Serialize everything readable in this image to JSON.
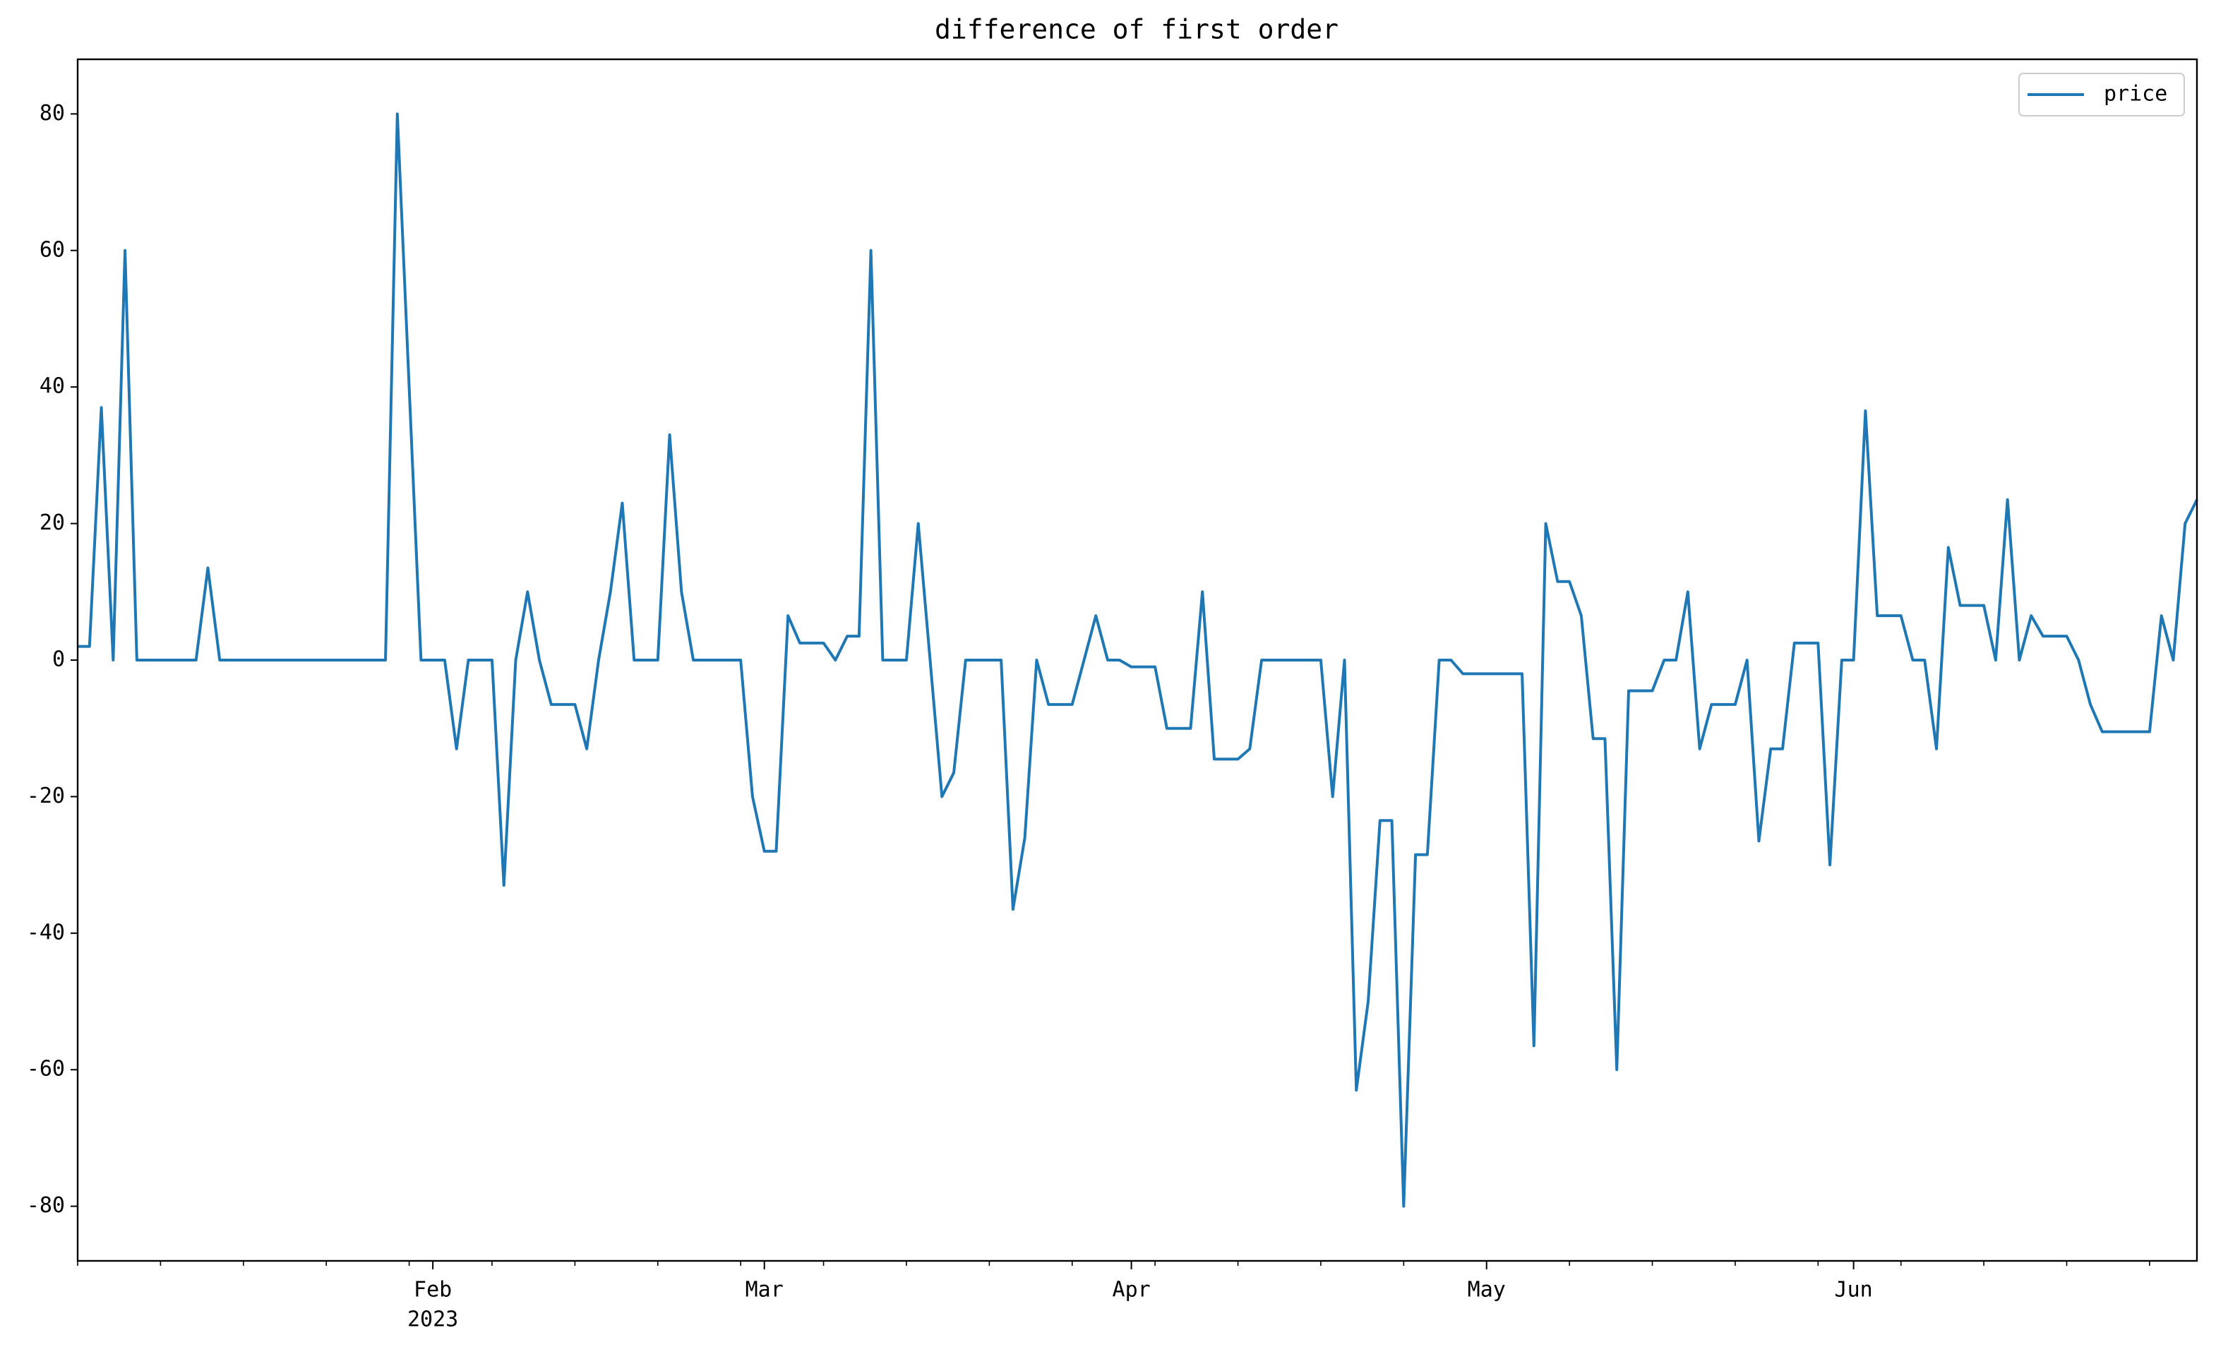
{
  "chart_data": {
    "type": "line",
    "title": "difference of first order",
    "categories": [
      null,
      null,
      null,
      null,
      null,
      null,
      null,
      null,
      null,
      null,
      null,
      null,
      null,
      null,
      null,
      null,
      null,
      null,
      null,
      null,
      null,
      null,
      null,
      null,
      null,
      null,
      null,
      null,
      null,
      null,
      "Feb",
      null,
      null,
      null,
      null,
      null,
      null,
      null,
      null,
      null,
      null,
      null,
      null,
      null,
      null,
      null,
      null,
      null,
      null,
      null,
      null,
      null,
      null,
      null,
      null,
      null,
      null,
      null,
      "Mar",
      null,
      null,
      null,
      null,
      null,
      null,
      null,
      null,
      null,
      null,
      null,
      null,
      null,
      null,
      null,
      null,
      null,
      null,
      null,
      null,
      null,
      null,
      null,
      null,
      null,
      null,
      null,
      null,
      null,
      null,
      "Apr",
      null,
      null,
      null,
      null,
      null,
      null,
      null,
      null,
      null,
      null,
      null,
      null,
      null,
      null,
      null,
      null,
      null,
      null,
      null,
      null,
      null,
      null,
      null,
      null,
      null,
      null,
      null,
      null,
      null,
      "May",
      null,
      null,
      null,
      null,
      null,
      null,
      null,
      null,
      null,
      null,
      null,
      null,
      null,
      null,
      null,
      null,
      null,
      null,
      null,
      null,
      null,
      null,
      null,
      null,
      null,
      null,
      null,
      null,
      null,
      null,
      "Jun",
      null,
      null,
      null,
      null,
      null,
      null,
      null,
      null,
      null,
      null,
      null,
      null,
      null,
      null,
      null,
      null,
      null,
      null,
      null,
      null,
      null,
      null,
      null,
      null,
      null,
      null,
      null,
      null,
      null
    ],
    "x_year_label": "2023",
    "series": [
      {
        "name": "price",
        "color": "#1f77b4",
        "values": [
          2,
          2,
          37,
          0,
          60,
          0,
          0,
          0,
          0,
          0,
          0,
          13.5,
          0,
          0,
          0,
          0,
          0,
          0,
          0,
          0,
          0,
          0,
          0,
          0,
          0,
          0,
          0,
          80,
          40,
          0,
          0,
          0,
          -13,
          0,
          0,
          0,
          -33,
          0,
          10,
          0,
          -6.5,
          -6.5,
          -6.5,
          -13,
          0,
          10,
          23,
          0,
          0,
          0,
          33,
          10,
          0,
          0,
          0,
          0,
          0,
          -20,
          -28,
          -28,
          6.5,
          2.5,
          2.5,
          2.5,
          0,
          3.5,
          3.5,
          60,
          0,
          0,
          0,
          20,
          0,
          -20,
          -16.5,
          0,
          0,
          0,
          0,
          -36.5,
          -26,
          0,
          -6.5,
          -6.5,
          -6.5,
          0,
          6.5,
          0,
          0,
          -1,
          -1,
          -1,
          -10,
          -10,
          -10,
          10,
          -14.5,
          -14.5,
          -14.5,
          -13,
          0,
          0,
          0,
          0,
          0,
          0,
          -20,
          0,
          -63,
          -50,
          -23.5,
          -23.5,
          -80,
          -28.5,
          -28.5,
          0,
          0,
          -2,
          -2,
          -2,
          -2,
          -2,
          -2,
          -56.5,
          20,
          11.5,
          11.5,
          6.5,
          -11.5,
          -11.5,
          -60,
          -4.5,
          -4.5,
          -4.5,
          0,
          0,
          10,
          -13,
          -6.5,
          -6.5,
          -6.5,
          0,
          -26.5,
          -13,
          -13,
          2.5,
          2.5,
          2.5,
          -30,
          0,
          0,
          36.5,
          6.5,
          6.5,
          6.5,
          0,
          0,
          -13,
          16.5,
          8,
          8,
          8,
          0,
          23.5,
          0,
          6.5,
          3.5,
          3.5,
          3.5,
          0,
          -6.5,
          -10.5,
          -10.5,
          -10.5,
          -10.5,
          -10.5,
          6.5,
          0,
          20,
          23.5
        ]
      }
    ],
    "ylim": [
      -88,
      88
    ],
    "yticks": [
      -80,
      -60,
      -40,
      -20,
      0,
      20,
      40,
      60,
      80
    ],
    "grid": false,
    "legend": "upper right"
  }
}
